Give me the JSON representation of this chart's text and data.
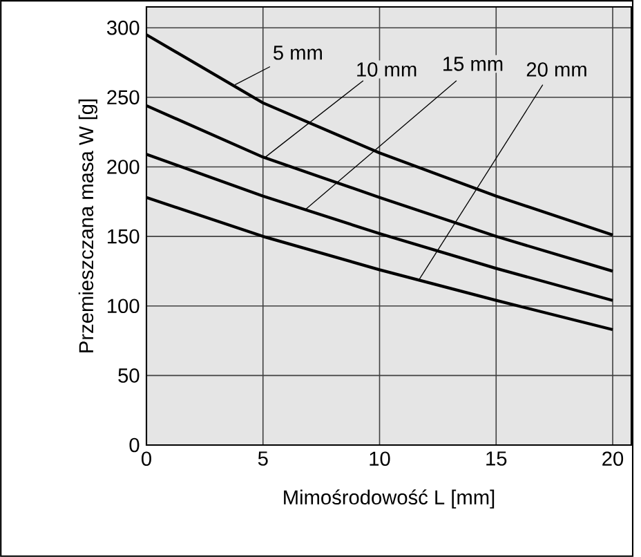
{
  "chart_data": {
    "type": "line",
    "xlabel": "Mimośrodowość L [mm]",
    "ylabel": "Przemieszczana masa W [g]",
    "xlim": [
      0,
      20.8
    ],
    "ylim": [
      0,
      315
    ],
    "xticks": [
      0,
      5,
      10,
      15,
      20
    ],
    "yticks": [
      0,
      50,
      100,
      150,
      200,
      250,
      300
    ],
    "grid": true,
    "x": [
      0,
      5,
      10,
      15,
      20
    ],
    "series": [
      {
        "color": "#000000",
        "values": [
          295,
          246,
          210,
          179,
          151
        ]
      },
      {
        "color": "#000000",
        "values": [
          244,
          207,
          178,
          150,
          125
        ]
      },
      {
        "color": "#000000",
        "values": [
          209,
          179,
          152,
          127,
          104
        ]
      },
      {
        "color": "#000000",
        "values": [
          178,
          150,
          126,
          104,
          83
        ]
      }
    ],
    "annotations": [
      {
        "text": "5 mm",
        "x": 3.8,
        "y": 259
      },
      {
        "text": "10 mm",
        "x": 5.1,
        "y": 207
      },
      {
        "text": "15 mm",
        "x": 6.8,
        "y": 169
      },
      {
        "text": "20 mm",
        "x": 11.7,
        "y": 119
      }
    ]
  }
}
